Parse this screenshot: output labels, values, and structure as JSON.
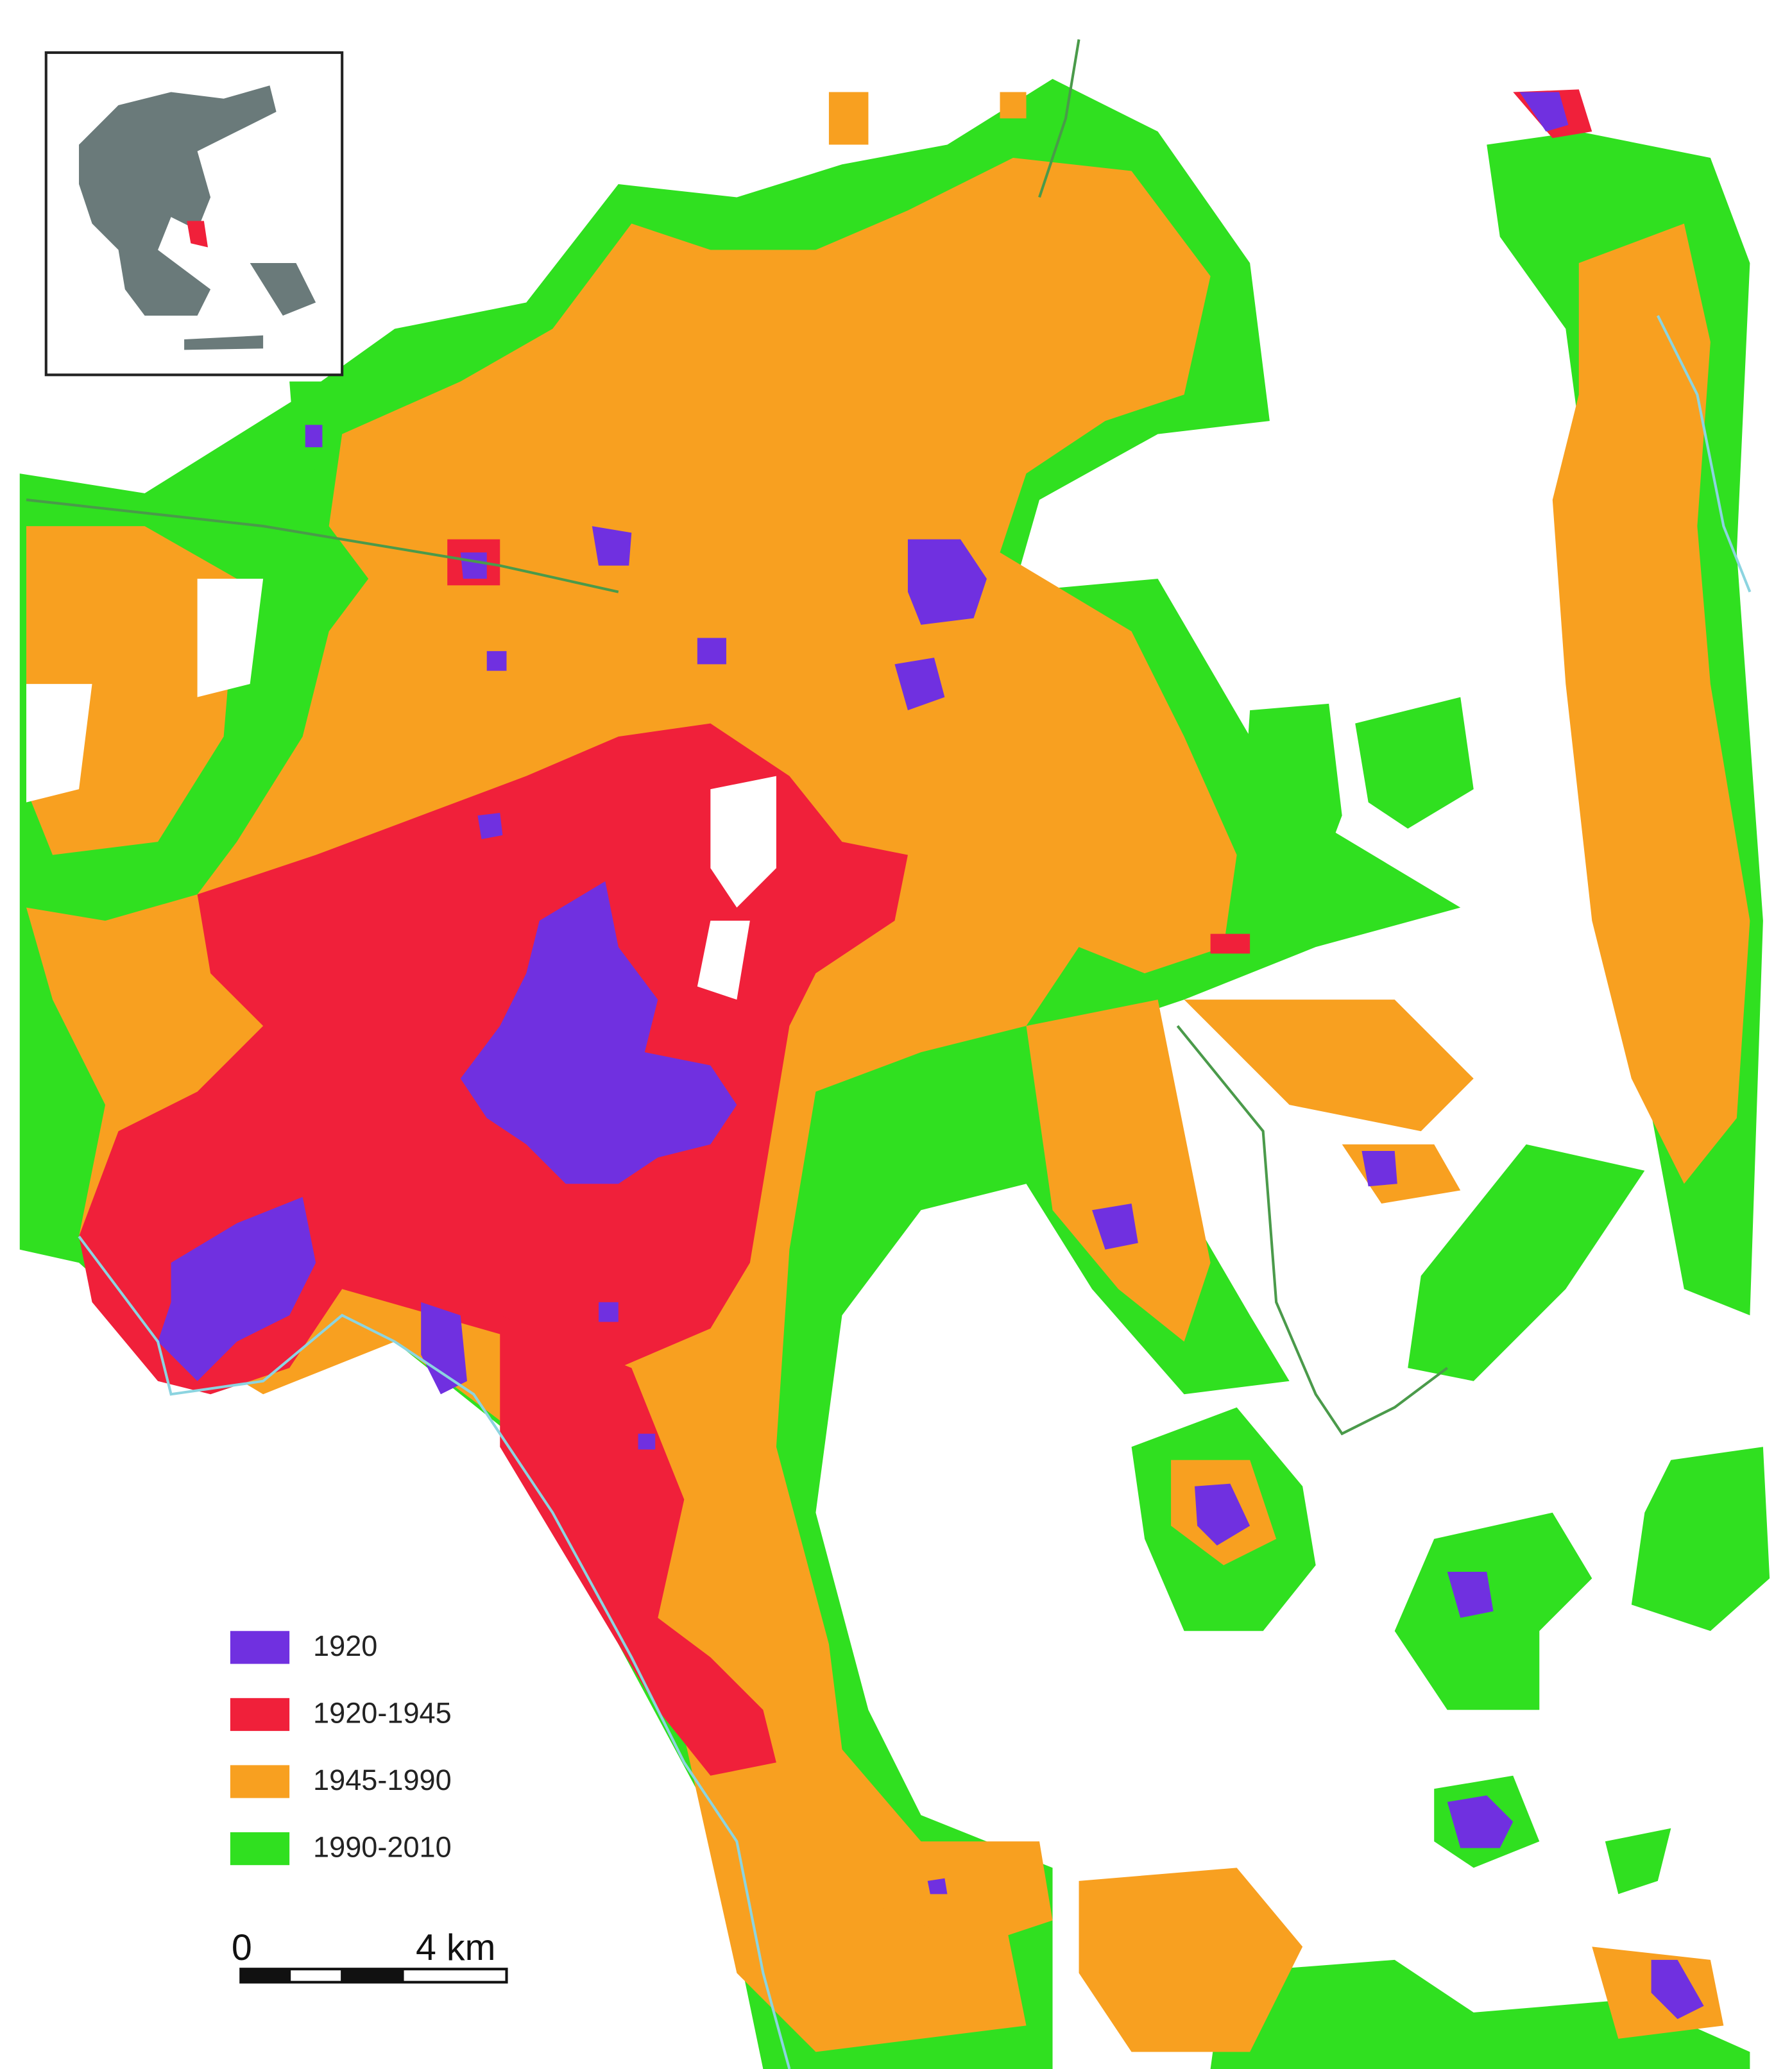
{
  "legend": {
    "items": [
      {
        "label": "1920",
        "color": "#7030e0"
      },
      {
        "label": "1920-1945",
        "color": "#f0203a"
      },
      {
        "label": "1945-1990",
        "color": "#f8a020"
      },
      {
        "label": "1990-2010",
        "color": "#30e020"
      }
    ]
  },
  "scale_bar": {
    "labels": [
      "0",
      "4 km"
    ]
  }
}
